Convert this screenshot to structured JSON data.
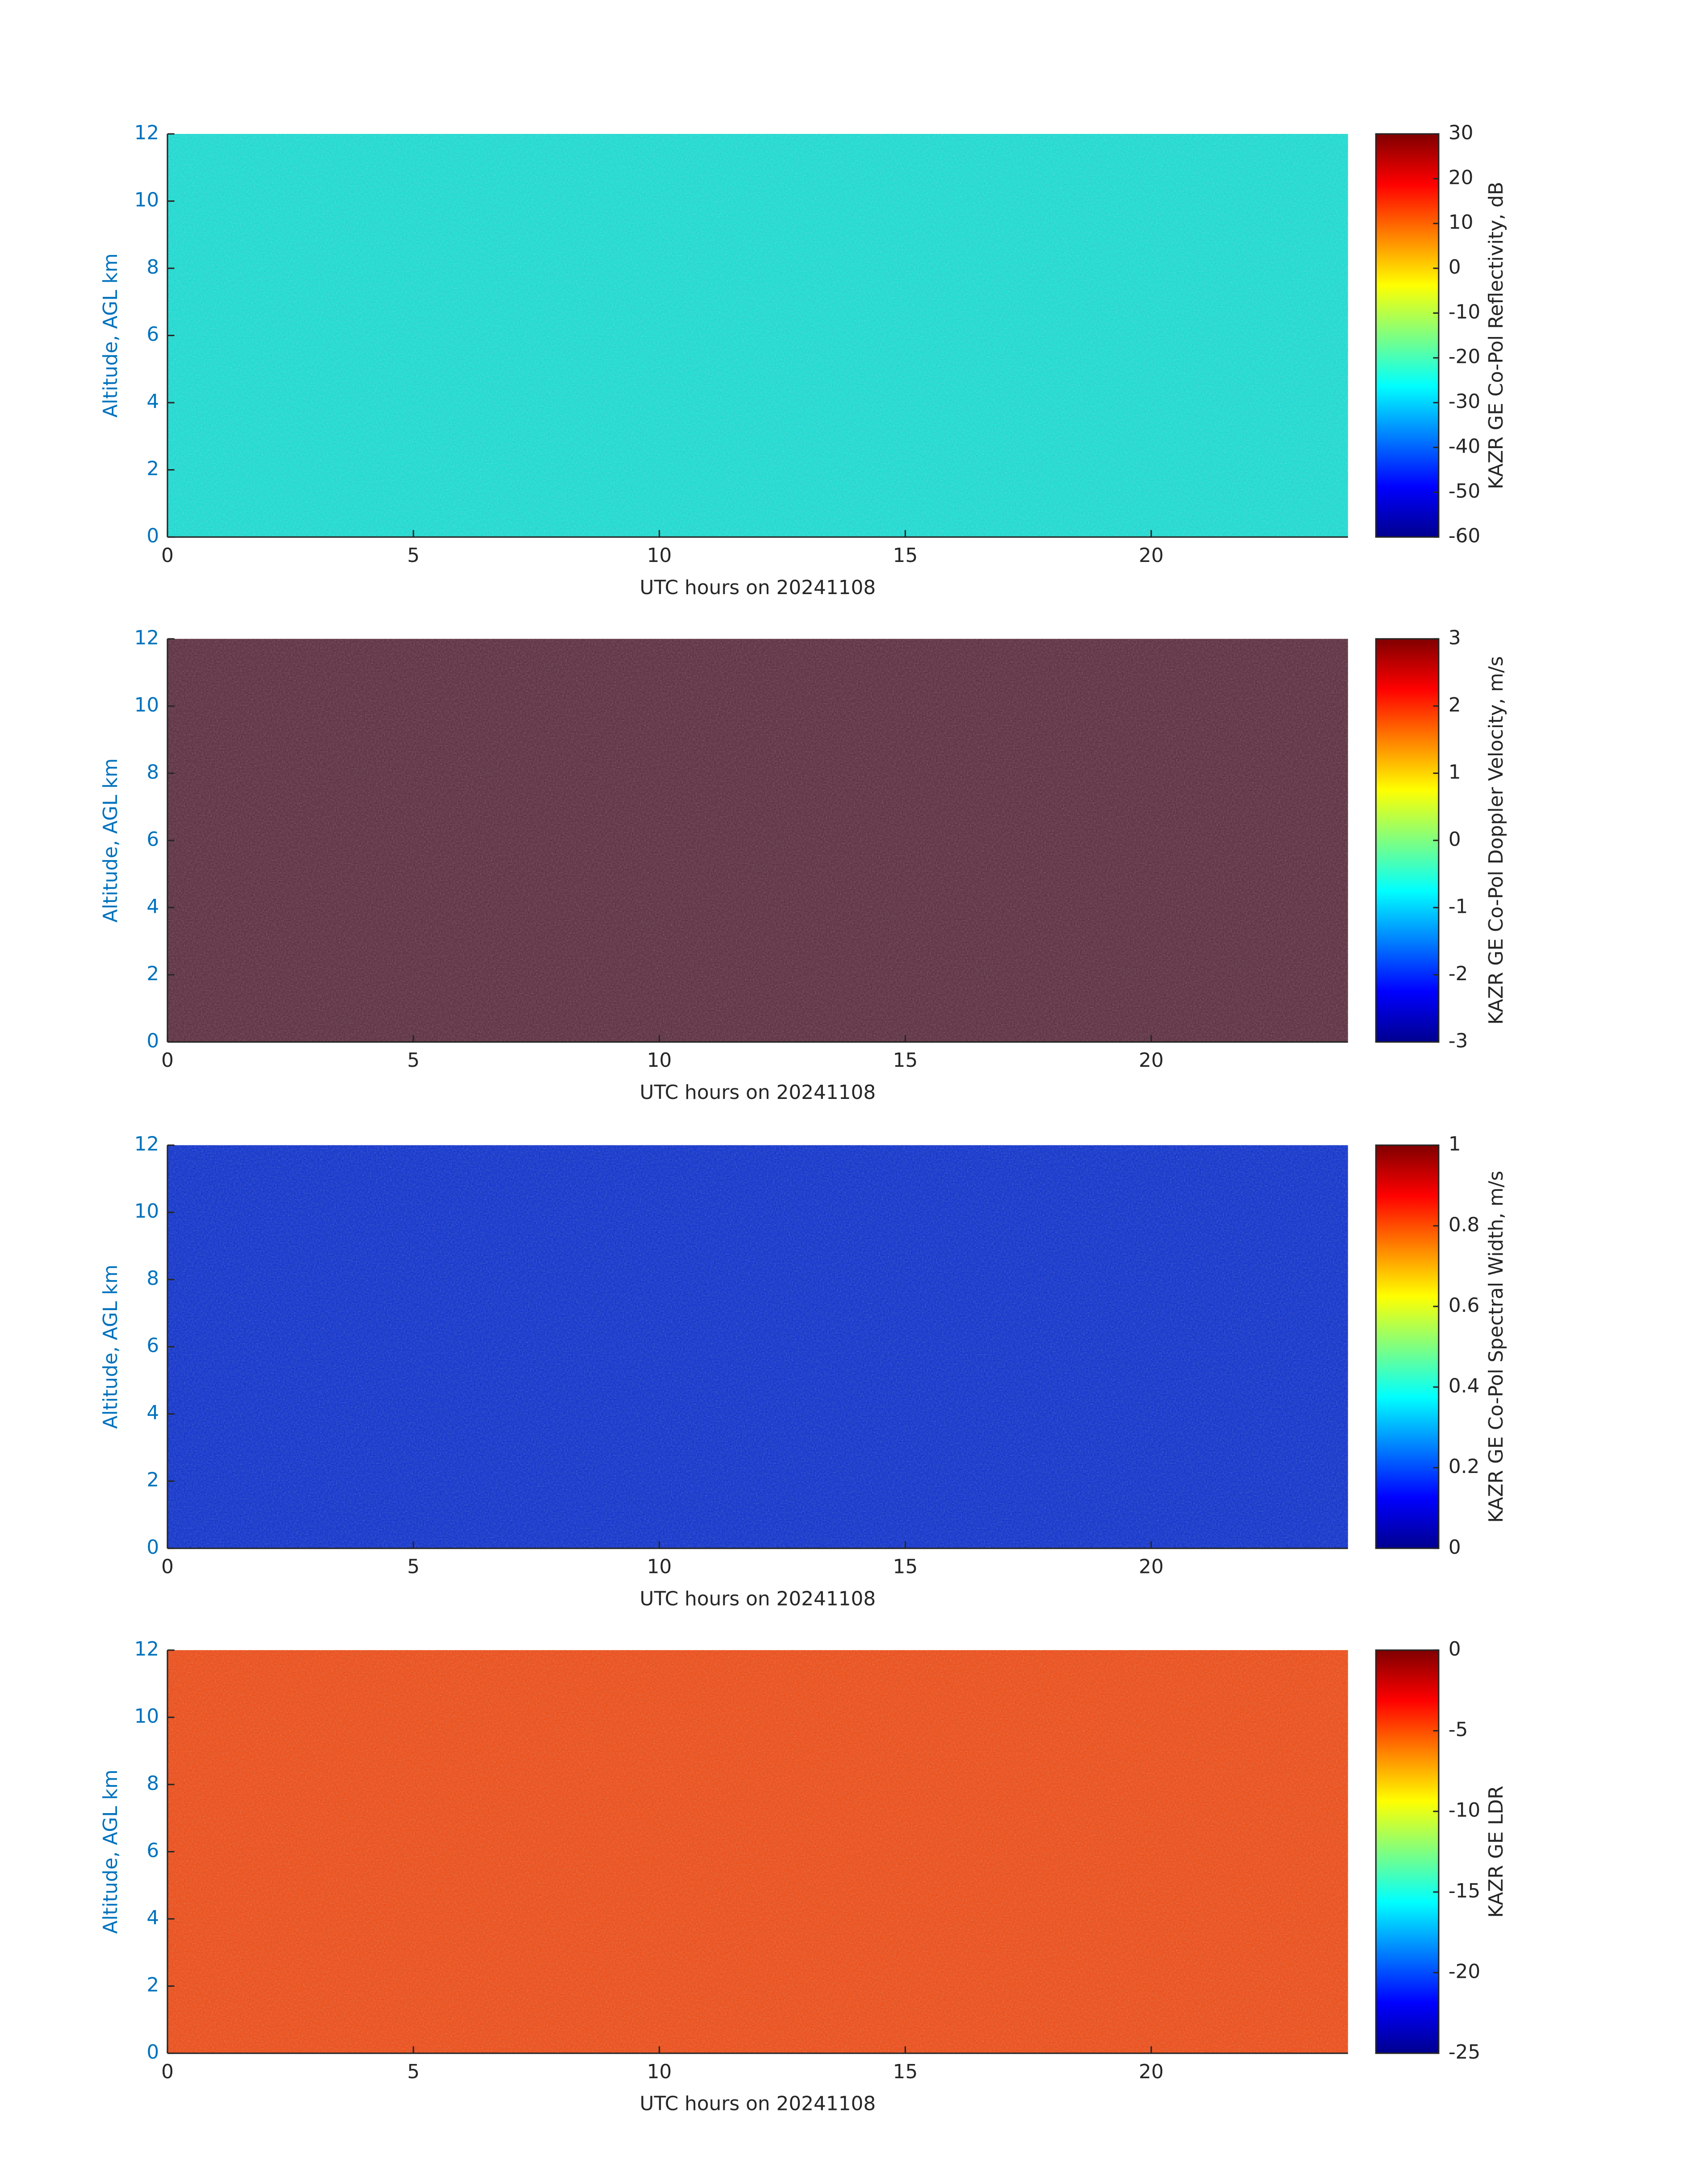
{
  "chart_data": [
    {
      "type": "heatmap",
      "color": "#17e0d6",
      "colormap": "jet",
      "xlabel": "UTC hours on 20241108",
      "ylabel": "Altitude, AGL km",
      "xlim": [
        0,
        24
      ],
      "xticks": [
        0,
        5,
        10,
        15,
        20
      ],
      "ylim": [
        0,
        12
      ],
      "yticks": [
        0,
        2,
        4,
        6,
        8,
        10,
        12
      ],
      "colorbar": {
        "label": "KAZR GE Co-Pol Reflectivity, dB",
        "lim": [
          -60,
          30
        ],
        "ticks": [
          -60,
          -50,
          -40,
          -30,
          -20,
          -10,
          0,
          10,
          20,
          30
        ]
      }
    },
    {
      "type": "heatmap",
      "color": "#5a2a3c",
      "colormap": "jet",
      "xlabel": "UTC hours on 20241108",
      "ylabel": "Altitude, AGL km",
      "xlim": [
        0,
        24
      ],
      "xticks": [
        0,
        5,
        10,
        15,
        20
      ],
      "ylim": [
        0,
        12
      ],
      "yticks": [
        0,
        2,
        4,
        6,
        8,
        10,
        12
      ],
      "colorbar": {
        "label": "KAZR GE Co-Pol Doppler Velocity, m/s",
        "lim": [
          -3,
          3
        ],
        "ticks": [
          -3,
          -2,
          -1,
          0,
          1,
          2,
          3
        ]
      }
    },
    {
      "type": "heatmap",
      "color": "#0a2fd0",
      "colormap": "jet",
      "xlabel": "UTC hours on 20241108",
      "ylabel": "Altitude, AGL km",
      "xlim": [
        0,
        24
      ],
      "xticks": [
        0,
        5,
        10,
        15,
        20
      ],
      "ylim": [
        0,
        12
      ],
      "yticks": [
        0,
        2,
        4,
        6,
        8,
        10,
        12
      ],
      "colorbar": {
        "label": "KAZR GE Co-Pol Spectral Width, m/s",
        "lim": [
          0,
          1
        ],
        "ticks": [
          0,
          0.2,
          0.4,
          0.6,
          0.8,
          1
        ]
      }
    },
    {
      "type": "heatmap",
      "color": "#f24a12",
      "colormap": "jet",
      "xlabel": "UTC hours on 20241108",
      "ylabel": "Altitude, AGL km",
      "xlim": [
        0,
        24
      ],
      "xticks": [
        0,
        5,
        10,
        15,
        20
      ],
      "ylim": [
        0,
        12
      ],
      "yticks": [
        0,
        2,
        4,
        6,
        8,
        10,
        12
      ],
      "colorbar": {
        "label": "KAZR GE LDR",
        "lim": [
          -25,
          0
        ],
        "ticks": [
          -25,
          -20,
          -15,
          -10,
          -5,
          0
        ]
      }
    }
  ]
}
